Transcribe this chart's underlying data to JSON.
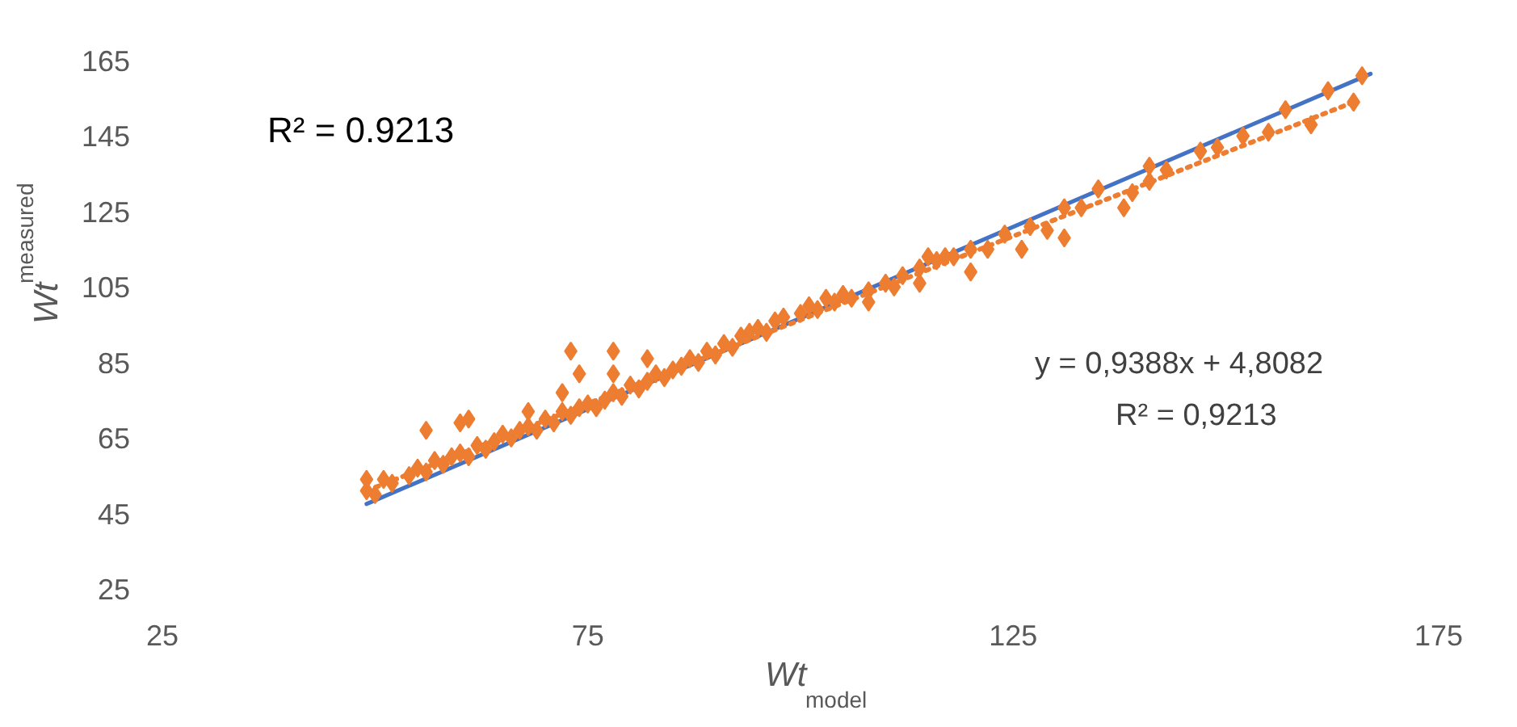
{
  "chart_data": {
    "type": "scatter",
    "xlabel": "Wt$_{model}$",
    "ylabel": "Wt$_{measured}$",
    "xlim": [
      25,
      175
    ],
    "xticks": [
      25,
      75,
      125,
      175
    ],
    "ylim": [
      25,
      165
    ],
    "yticks": [
      25,
      45,
      65,
      85,
      105,
      125,
      145,
      165
    ],
    "marker": "diamond",
    "annotations": [
      "R² = 0.9213",
      "y = 0,9388x + 4,8082",
      "R² = 0,9213"
    ],
    "series": [
      {
        "type": "line",
        "color": "#4472c4",
        "line_style": "solid",
        "marker": "none",
        "x": [
          49,
          167
        ],
        "values": [
          47.5,
          161.5
        ]
      },
      {
        "color": "#ed7d31",
        "x": [
          49,
          50,
          51,
          52,
          54,
          55,
          56,
          57,
          58,
          59,
          60,
          61,
          62,
          63,
          64,
          65,
          66,
          67,
          68,
          69,
          70,
          71,
          72,
          73,
          74,
          75,
          76,
          77,
          78,
          79,
          80,
          81,
          82,
          83,
          84,
          85,
          86,
          87,
          88,
          89,
          90,
          91,
          92,
          93,
          94,
          95,
          96,
          97,
          98,
          100,
          101,
          102,
          103,
          104,
          105,
          106,
          108,
          110,
          112,
          114,
          115,
          116,
          118,
          49,
          56,
          60,
          61,
          68,
          72,
          73,
          74,
          78,
          78,
          82,
          108,
          111,
          114,
          117,
          120,
          120,
          122,
          124,
          126,
          127,
          129,
          131,
          131,
          133,
          135,
          138,
          139,
          141,
          141,
          143,
          147,
          149,
          152,
          155,
          157,
          160,
          162,
          165,
          166
        ],
        "values": [
          51,
          50,
          54,
          53,
          55,
          57,
          56,
          59,
          58,
          60,
          61,
          60,
          63,
          62,
          64,
          66,
          65,
          67,
          68,
          67,
          70,
          69,
          72,
          71,
          73,
          74,
          73,
          75,
          77,
          76,
          79,
          78,
          80,
          82,
          81,
          83,
          84,
          86,
          85,
          88,
          87,
          90,
          89,
          92,
          93,
          94,
          93,
          96,
          97,
          98,
          100,
          99,
          102,
          101,
          103,
          102,
          104,
          106,
          108,
          110,
          113,
          112,
          113,
          54,
          67,
          69,
          70,
          72,
          77,
          88,
          82,
          88,
          82,
          86,
          101,
          105,
          106,
          113,
          109,
          115,
          115,
          119,
          115,
          121,
          120,
          118,
          126,
          126,
          131,
          126,
          130,
          133,
          137,
          136,
          141,
          142,
          145,
          146,
          152,
          148,
          157,
          154,
          161
        ]
      },
      {
        "type": "line",
        "color": "#ed7d31",
        "line_style": "dotted",
        "marker": "none",
        "x": [
          49,
          165
        ],
        "values": [
          51,
          154
        ]
      }
    ]
  }
}
